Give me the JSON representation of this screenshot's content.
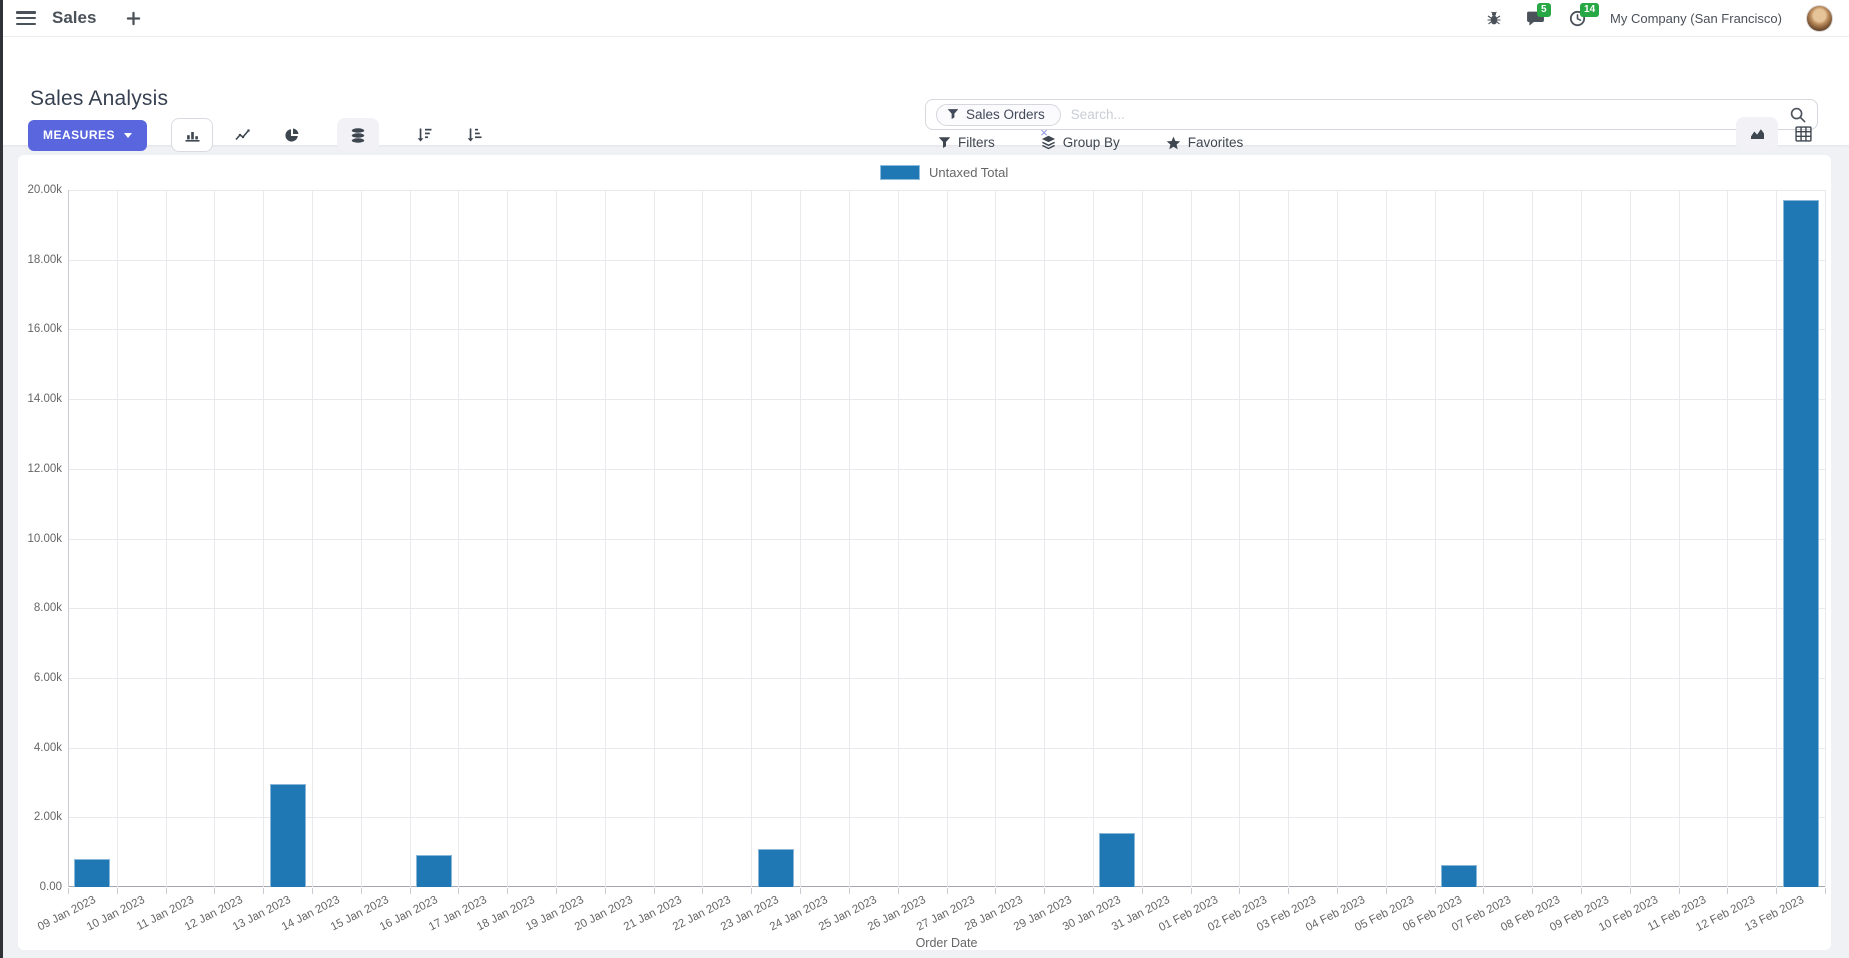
{
  "navbar": {
    "app_name": "Sales",
    "company": "My Company (San Francisco)",
    "message_badge": "5",
    "activity_badge": "14"
  },
  "control_panel": {
    "title": "Sales Analysis",
    "measures_label": "MEASURES",
    "search": {
      "facet": "Sales Orders",
      "facet_remove": "×",
      "placeholder": "Search..."
    },
    "filter_menus": {
      "filters": "Filters",
      "group_by": "Group By",
      "favorites": "Favorites"
    }
  },
  "colors": {
    "accent": "#5a66dd",
    "bar": "#1f77b4",
    "badge_green": "#28a745"
  },
  "chart_data": {
    "type": "bar",
    "title": "",
    "legend": [
      "Untaxed Total"
    ],
    "legend_position": "top",
    "xlabel": "Order Date",
    "ylabel": "",
    "ylim": [
      0,
      20000
    ],
    "grid": true,
    "y_tick_labels": [
      "0.00",
      "2.00k",
      "4.00k",
      "6.00k",
      "8.00k",
      "10.00k",
      "12.00k",
      "14.00k",
      "16.00k",
      "18.00k",
      "20.00k"
    ],
    "categories": [
      "09 Jan 2023",
      "10 Jan 2023",
      "11 Jan 2023",
      "12 Jan 2023",
      "13 Jan 2023",
      "14 Jan 2023",
      "15 Jan 2023",
      "16 Jan 2023",
      "17 Jan 2023",
      "18 Jan 2023",
      "19 Jan 2023",
      "20 Jan 2023",
      "21 Jan 2023",
      "22 Jan 2023",
      "23 Jan 2023",
      "24 Jan 2023",
      "25 Jan 2023",
      "26 Jan 2023",
      "27 Jan 2023",
      "28 Jan 2023",
      "29 Jan 2023",
      "30 Jan 2023",
      "31 Jan 2023",
      "01 Feb 2023",
      "02 Feb 2023",
      "03 Feb 2023",
      "04 Feb 2023",
      "05 Feb 2023",
      "06 Feb 2023",
      "07 Feb 2023",
      "08 Feb 2023",
      "09 Feb 2023",
      "10 Feb 2023",
      "11 Feb 2023",
      "12 Feb 2023",
      "13 Feb 2023"
    ],
    "series": [
      {
        "name": "Untaxed Total",
        "color": "#1f77b4",
        "values": [
          800,
          0,
          0,
          0,
          2950,
          0,
          0,
          930,
          0,
          0,
          0,
          0,
          0,
          0,
          1100,
          0,
          0,
          0,
          0,
          0,
          0,
          1560,
          0,
          0,
          0,
          0,
          0,
          0,
          640,
          0,
          0,
          0,
          0,
          0,
          0,
          19700
        ]
      }
    ]
  }
}
